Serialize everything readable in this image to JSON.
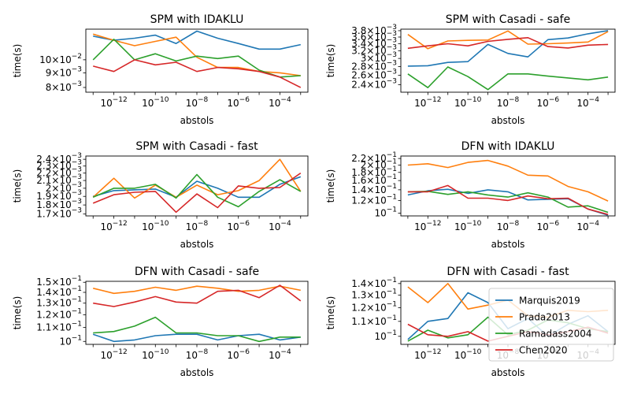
{
  "figure": {
    "xlabel": "abstols",
    "ylabel": "time(s)"
  },
  "legend": {
    "entries": [
      {
        "name": "Marquis2019",
        "color": "#1f77b4"
      },
      {
        "name": "Prada2013",
        "color": "#ff7f0e"
      },
      {
        "name": "Ramadass2004",
        "color": "#2ca02c"
      },
      {
        "name": "Chen2020",
        "color": "#d62728"
      }
    ]
  },
  "chart_data": [
    {
      "type": "line",
      "title": "SPM with IDAKLU",
      "xlabel": "abstols",
      "ylabel": "time(s)",
      "xscale": "log",
      "yscale": "log",
      "x": [
        1e-13,
        1e-12,
        1e-11,
        1e-10,
        1e-09,
        1e-08,
        1e-07,
        1e-06,
        1e-05,
        0.0001,
        0.001
      ],
      "xticks": [
        "10^-12",
        "10^-10",
        "10^-8",
        "10^-6",
        "10^-4"
      ],
      "yticks": [
        {
          "v": 0.008,
          "m": "8",
          "e": "-3"
        },
        {
          "v": 0.009,
          "m": "9",
          "e": "-3"
        },
        {
          "v": 0.01,
          "m": "10",
          "e": "-2"
        }
      ],
      "ylim": [
        0.0077,
        0.0128
      ],
      "series": [
        {
          "name": "Marquis2019",
          "values": [
            0.0121,
            0.0117,
            0.0119,
            0.0122,
            0.0114,
            0.0126,
            0.0119,
            0.0114,
            0.0109,
            0.0109,
            0.0113
          ]
        },
        {
          "name": "Prada2013",
          "values": [
            0.0123,
            0.0117,
            0.0112,
            0.0116,
            0.012,
            0.0102,
            0.0094,
            0.0094,
            0.0091,
            0.009,
            0.0088
          ]
        },
        {
          "name": "Ramadass2004",
          "values": [
            0.01,
            0.0118,
            0.01,
            0.0105,
            0.0099,
            0.0103,
            0.0101,
            0.0103,
            0.0092,
            0.0087,
            0.0088
          ]
        },
        {
          "name": "Chen2020",
          "values": [
            0.0095,
            0.0091,
            0.01,
            0.0096,
            0.0098,
            0.0091,
            0.0094,
            0.0093,
            0.0091,
            0.0087,
            0.008
          ]
        }
      ]
    },
    {
      "type": "line",
      "title": "SPM with Casadi - safe",
      "xlabel": "abstols",
      "ylabel": "time(s)",
      "xscale": "log",
      "yscale": "log",
      "x": [
        1e-13,
        1e-12,
        1e-11,
        1e-10,
        1e-09,
        1e-08,
        1e-07,
        1e-06,
        1e-05,
        0.0001,
        0.001
      ],
      "xticks": [
        "10^-12",
        "10^-10",
        "10^-8",
        "10^-6",
        "10^-4"
      ],
      "yticks": [
        {
          "v": 0.0024,
          "m": "2.4",
          "e": "-3"
        },
        {
          "v": 0.0026,
          "m": "2.6",
          "e": "-3"
        },
        {
          "v": 0.0028,
          "m": "2.8",
          "e": "-3"
        },
        {
          "v": 0.003,
          "m": "3",
          "e": "-3"
        },
        {
          "v": 0.0032,
          "m": "3.2",
          "e": "-3"
        },
        {
          "v": 0.0034,
          "m": "3.4",
          "e": "-3"
        },
        {
          "v": 0.0036,
          "m": "3.6",
          "e": "-3"
        },
        {
          "v": 0.0038,
          "m": "3.8",
          "e": "-3"
        }
      ],
      "ylim": [
        0.00225,
        0.00385
      ],
      "series": [
        {
          "name": "Marquis2019",
          "values": [
            0.00281,
            0.00282,
            0.0029,
            0.00292,
            0.00338,
            0.00313,
            0.00304,
            0.00352,
            0.00357,
            0.0037,
            0.0038
          ]
        },
        {
          "name": "Prada2013",
          "values": [
            0.00368,
            0.00326,
            0.00348,
            0.0035,
            0.00351,
            0.00379,
            0.00339,
            0.0034,
            0.00342,
            0.00345,
            0.00377
          ]
        },
        {
          "name": "Ramadass2004",
          "values": [
            0.00263,
            0.00234,
            0.00279,
            0.00257,
            0.0023,
            0.00263,
            0.00263,
            0.00258,
            0.00254,
            0.0025,
            0.00256
          ]
        },
        {
          "name": "Chen2020",
          "values": [
            0.00327,
            0.00334,
            0.0034,
            0.00334,
            0.00347,
            0.00353,
            0.00358,
            0.00332,
            0.00328,
            0.00336,
            0.00338
          ]
        }
      ]
    },
    {
      "type": "line",
      "title": "SPM with Casadi - fast",
      "xlabel": "abstols",
      "ylabel": "time(s)",
      "xscale": "log",
      "yscale": "log",
      "x": [
        1e-13,
        1e-12,
        1e-11,
        1e-10,
        1e-09,
        1e-08,
        1e-07,
        1e-06,
        1e-05,
        0.0001,
        0.001
      ],
      "xticks": [
        "10^-12",
        "10^-10",
        "10^-8",
        "10^-6",
        "10^-4"
      ],
      "yticks": [
        {
          "v": 0.0017,
          "m": "1.7",
          "e": "-3"
        },
        {
          "v": 0.0018,
          "m": "1.8",
          "e": "-3"
        },
        {
          "v": 0.0019,
          "m": "1.9",
          "e": "-3"
        },
        {
          "v": 0.002,
          "m": "2",
          "e": "-3"
        },
        {
          "v": 0.0021,
          "m": "2.1",
          "e": "-3"
        },
        {
          "v": 0.0022,
          "m": "2.2",
          "e": "-3"
        },
        {
          "v": 0.0023,
          "m": "2.3",
          "e": "-3"
        },
        {
          "v": 0.0024,
          "m": "2.4",
          "e": "-3"
        }
      ],
      "ylim": [
        0.00168,
        0.00245
      ],
      "series": [
        {
          "name": "Marquis2019",
          "values": [
            0.0019,
            0.00197,
            0.00198,
            0.00199,
            0.00189,
            0.00209,
            0.002,
            0.00189,
            0.00189,
            0.00205,
            0.00215
          ]
        },
        {
          "name": "Prada2013",
          "values": [
            0.00189,
            0.00213,
            0.00188,
            0.00204,
            0.00189,
            0.00204,
            0.00192,
            0.00197,
            0.0021,
            0.0024,
            0.00196
          ]
        },
        {
          "name": "Ramadass2004",
          "values": [
            0.00189,
            0.002,
            0.002,
            0.00205,
            0.00188,
            0.00218,
            0.00189,
            0.00178,
            0.00196,
            0.00211,
            0.00196
          ]
        },
        {
          "name": "Chen2020",
          "values": [
            0.00182,
            0.00192,
            0.00195,
            0.00196,
            0.00172,
            0.00193,
            0.00177,
            0.00203,
            0.002,
            0.00201,
            0.0022
          ]
        }
      ]
    },
    {
      "type": "line",
      "title": "DFN with IDAKLU",
      "xlabel": "abstols",
      "ylabel": "time(s)",
      "xscale": "log",
      "yscale": "log",
      "x": [
        1e-13,
        1e-12,
        1e-11,
        1e-10,
        1e-09,
        1e-08,
        1e-07,
        1e-06,
        1e-05,
        0.0001,
        0.001
      ],
      "xticks": [
        "10^-12",
        "10^-10",
        "10^-8",
        "10^-6",
        "10^-4"
      ],
      "yticks": [
        {
          "v": 0.1,
          "m": "",
          "e": "-1"
        },
        {
          "v": 0.12,
          "m": "1.2",
          "e": "-1"
        },
        {
          "v": 0.14,
          "m": "1.4",
          "e": "-1"
        },
        {
          "v": 0.16,
          "m": "1.6",
          "e": "-1"
        },
        {
          "v": 0.18,
          "m": "1.8",
          "e": "-1"
        },
        {
          "v": 0.2,
          "m": "2",
          "e": "-1"
        },
        {
          "v": 0.22,
          "m": "2.2",
          "e": "-1"
        }
      ],
      "ylim": [
        0.096,
        0.228
      ],
      "series": [
        {
          "name": "Marquis2019",
          "values": [
            0.13,
            0.138,
            0.141,
            0.133,
            0.14,
            0.136,
            0.121,
            0.122,
            0.123,
            0.106,
            0.097
          ]
        },
        {
          "name": "Prada2013",
          "values": [
            0.2,
            0.204,
            0.193,
            0.208,
            0.214,
            0.197,
            0.173,
            0.171,
            0.147,
            0.136,
            0.119
          ]
        },
        {
          "name": "Ramadass2004",
          "values": [
            0.136,
            0.137,
            0.131,
            0.136,
            0.13,
            0.126,
            0.134,
            0.126,
            0.109,
            0.111,
            0.101
          ]
        },
        {
          "name": "Chen2020",
          "values": [
            0.136,
            0.136,
            0.149,
            0.124,
            0.124,
            0.12,
            0.128,
            0.123,
            0.124,
            0.106,
            0.098
          ]
        }
      ]
    },
    {
      "type": "line",
      "title": "DFN with Casadi - safe",
      "xlabel": "abstols",
      "ylabel": "time(s)",
      "xscale": "log",
      "yscale": "log",
      "x": [
        1e-13,
        1e-12,
        1e-11,
        1e-10,
        1e-09,
        1e-08,
        1e-07,
        1e-06,
        1e-05,
        0.0001,
        0.001
      ],
      "xticks": [
        "10^-12",
        "10^-10",
        "10^-8",
        "10^-6",
        "10^-4"
      ],
      "yticks": [
        {
          "v": 0.1,
          "m": "",
          "e": "-1"
        },
        {
          "v": 0.11,
          "m": "1.1",
          "e": "-1"
        },
        {
          "v": 0.12,
          "m": "1.2",
          "e": "-1"
        },
        {
          "v": 0.13,
          "m": "1.3",
          "e": "-1"
        },
        {
          "v": 0.14,
          "m": "1.4",
          "e": "-1"
        },
        {
          "v": 0.15,
          "m": "1.5",
          "e": "-1"
        }
      ],
      "ylim": [
        0.098,
        0.151
      ],
      "series": [
        {
          "name": "Marquis2019",
          "values": [
            0.105,
            0.1,
            0.101,
            0.104,
            0.105,
            0.105,
            0.101,
            0.104,
            0.105,
            0.101,
            0.103
          ]
        },
        {
          "name": "Prada2013",
          "values": [
            0.144,
            0.139,
            0.141,
            0.145,
            0.142,
            0.146,
            0.144,
            0.141,
            0.142,
            0.146,
            0.142
          ]
        },
        {
          "name": "Ramadass2004",
          "values": [
            0.106,
            0.107,
            0.111,
            0.118,
            0.106,
            0.106,
            0.104,
            0.104,
            0.1,
            0.103,
            0.103
          ]
        },
        {
          "name": "Chen2020",
          "values": [
            0.13,
            0.127,
            0.131,
            0.136,
            0.131,
            0.13,
            0.141,
            0.142,
            0.135,
            0.147,
            0.132
          ]
        }
      ]
    },
    {
      "type": "line",
      "title": "DFN with Casadi - fast",
      "xlabel": "abstols",
      "ylabel": "time(s)",
      "xscale": "log",
      "yscale": "log",
      "x": [
        1e-13,
        1e-12,
        1e-11,
        1e-10,
        1e-09,
        1e-08,
        1e-07,
        1e-06,
        1e-05,
        0.0001,
        0.001
      ],
      "xticks": [
        "10^-12",
        "10^-10",
        "10^-8",
        "10^-6",
        "10^-4"
      ],
      "yticks": [
        {
          "v": 0.1,
          "m": "",
          "e": "-1"
        },
        {
          "v": 0.11,
          "m": "1.1",
          "e": "-1"
        },
        {
          "v": 0.12,
          "m": "1.2",
          "e": "-1"
        },
        {
          "v": 0.13,
          "m": "1.3",
          "e": "-1"
        },
        {
          "v": 0.14,
          "m": "1.4",
          "e": "-1"
        }
      ],
      "ylim": [
        0.095,
        0.142
      ],
      "legend_loc": "lower right",
      "series": [
        {
          "name": "Marquis2019",
          "values": [
            0.098,
            0.11,
            0.112,
            0.132,
            0.124,
            0.105,
            0.112,
            0.1,
            0.108,
            0.114,
            0.103
          ]
        },
        {
          "name": "Prada2013",
          "values": [
            0.137,
            0.124,
            0.14,
            0.119,
            0.122,
            0.126,
            0.114,
            0.113,
            0.118,
            0.117,
            0.118
          ]
        },
        {
          "name": "Ramadass2004",
          "values": [
            0.097,
            0.104,
            0.099,
            0.101,
            0.113,
            0.101,
            0.104,
            0.111,
            0.109,
            0.105,
            0.103
          ]
        },
        {
          "name": "Chen2020",
          "values": [
            0.108,
            0.101,
            0.1,
            0.103,
            0.097,
            0.1,
            0.103,
            0.101,
            0.103,
            0.106,
            0.102
          ]
        }
      ]
    }
  ]
}
